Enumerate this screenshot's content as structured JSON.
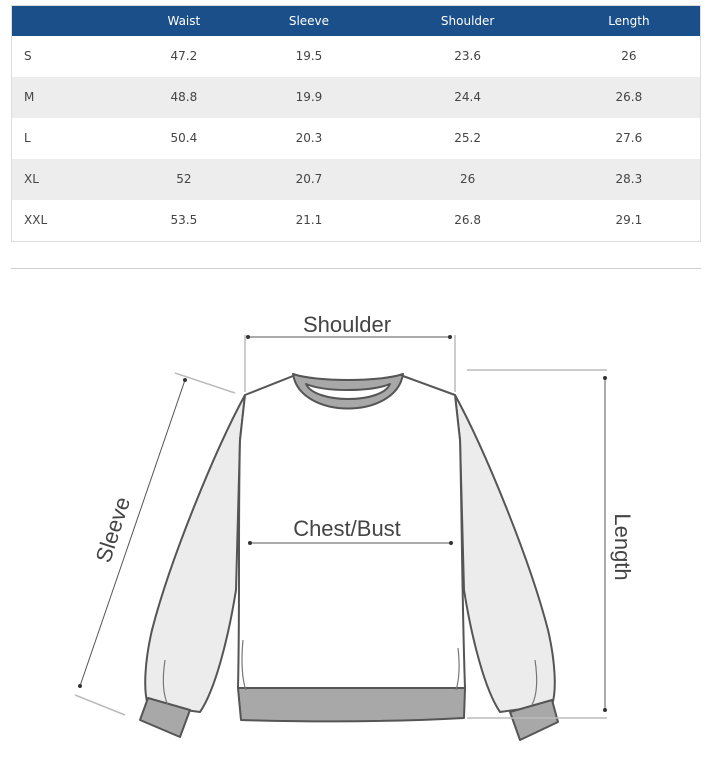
{
  "size_table": {
    "columns": [
      "",
      "Waist",
      "Sleeve",
      "Shoulder",
      "Length"
    ],
    "rows": [
      [
        "S",
        "47.2",
        "19.5",
        "23.6",
        "26"
      ],
      [
        "M",
        "48.8",
        "19.9",
        "24.4",
        "26.8"
      ],
      [
        "L",
        "50.4",
        "20.3",
        "25.2",
        "27.6"
      ],
      [
        "XL",
        "52",
        "20.7",
        "26",
        "28.3"
      ],
      [
        "XXL",
        "53.5",
        "21.1",
        "26.8",
        "29.1"
      ]
    ],
    "header_color": "#1a4f8a"
  },
  "diagram": {
    "shoulder_label": "Shoulder",
    "chest_label": "Chest/Bust",
    "sleeve_label": "Sleeve",
    "length_label": "Length"
  }
}
